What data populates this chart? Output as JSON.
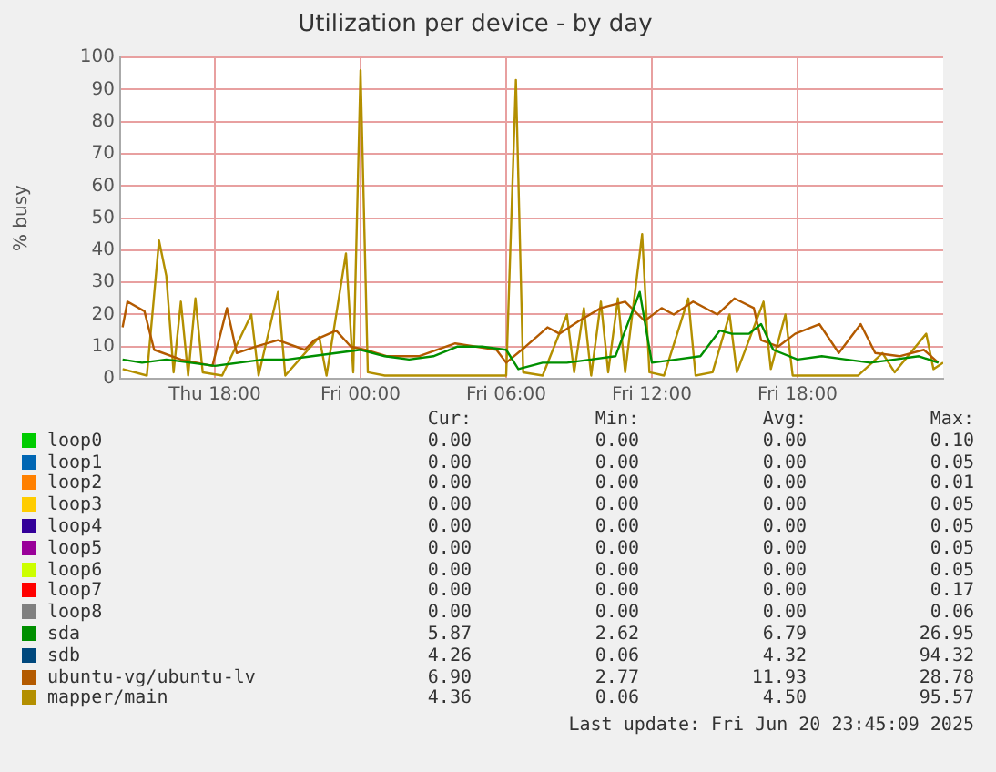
{
  "chart_data": {
    "type": "line",
    "title": "Utilization per device - by day",
    "ylabel": "% busy",
    "xlim": [
      "2025-06-19T14:06",
      "2025-06-21T00:00"
    ],
    "xticks": [
      {
        "value": "2025-06-19T18:00",
        "label": "Thu 18:00"
      },
      {
        "value": "2025-06-20T00:00",
        "label": "Fri 00:00"
      },
      {
        "value": "2025-06-20T06:00",
        "label": "Fri 06:00"
      },
      {
        "value": "2025-06-20T12:00",
        "label": "Fri 12:00"
      },
      {
        "value": "2025-06-20T18:00",
        "label": "Fri 18:00"
      }
    ],
    "ylim": [
      0,
      100
    ],
    "yticks": [
      0,
      10,
      20,
      30,
      40,
      50,
      60,
      70,
      80,
      90,
      100
    ],
    "grid": true,
    "legend": "bottom",
    "marker": "none",
    "series": [
      {
        "name": "loop0",
        "color": "#00cc00"
      },
      {
        "name": "loop1",
        "color": "#0066b3"
      },
      {
        "name": "loop2",
        "color": "#ff8000"
      },
      {
        "name": "loop3",
        "color": "#ffcc00"
      },
      {
        "name": "loop4",
        "color": "#330099"
      },
      {
        "name": "loop5",
        "color": "#990099"
      },
      {
        "name": "loop6",
        "color": "#ccff00"
      },
      {
        "name": "loop7",
        "color": "#ff0000"
      },
      {
        "name": "loop8",
        "color": "#808080"
      },
      {
        "name": "sda",
        "color": "#008f00",
        "x": [
          "2025-06-19T14:12",
          "2025-06-19T15:00",
          "2025-06-19T16:00",
          "2025-06-19T17:00",
          "2025-06-19T18:00",
          "2025-06-19T19:00",
          "2025-06-19T20:00",
          "2025-06-19T21:00",
          "2025-06-19T22:00",
          "2025-06-19T23:00",
          "2025-06-20T00:00",
          "2025-06-20T01:00",
          "2025-06-20T02:00",
          "2025-06-20T03:00",
          "2025-06-20T04:00",
          "2025-06-20T05:00",
          "2025-06-20T06:00",
          "2025-06-20T06:30",
          "2025-06-20T07:30",
          "2025-06-20T08:30",
          "2025-06-20T09:30",
          "2025-06-20T10:30",
          "2025-06-20T11:30",
          "2025-06-20T12:00",
          "2025-06-20T13:00",
          "2025-06-20T14:00",
          "2025-06-20T14:48",
          "2025-06-20T15:18",
          "2025-06-20T16:00",
          "2025-06-20T16:30",
          "2025-06-20T17:00",
          "2025-06-20T18:00",
          "2025-06-20T19:00",
          "2025-06-20T20:00",
          "2025-06-20T21:00",
          "2025-06-20T22:00",
          "2025-06-20T23:00",
          "2025-06-20T23:48"
        ],
        "values": [
          6,
          5,
          6,
          5,
          4,
          5,
          6,
          6,
          7,
          8,
          9,
          7,
          6,
          7,
          10,
          10,
          9,
          3,
          5,
          5,
          6,
          7,
          27,
          5,
          6,
          7,
          15,
          14,
          14,
          17,
          9,
          6,
          7,
          6,
          5,
          6,
          7,
          5
        ]
      },
      {
        "name": "sdb",
        "color": "#00487d"
      },
      {
        "name": "ubuntu-vg/ubuntu-lv",
        "color": "#b35a00",
        "x": [
          "2025-06-19T14:12",
          "2025-06-19T14:24",
          "2025-06-19T15:06",
          "2025-06-19T15:30",
          "2025-06-19T16:36",
          "2025-06-19T17:54",
          "2025-06-19T18:30",
          "2025-06-19T18:54",
          "2025-06-19T19:42",
          "2025-06-19T20:36",
          "2025-06-19T21:42",
          "2025-06-19T22:06",
          "2025-06-19T23:00",
          "2025-06-19T23:36",
          "2025-06-20T00:12",
          "2025-06-20T01:06",
          "2025-06-20T02:24",
          "2025-06-20T03:54",
          "2025-06-20T05:36",
          "2025-06-20T06:00",
          "2025-06-20T06:48",
          "2025-06-20T07:42",
          "2025-06-20T08:12",
          "2025-06-20T09:00",
          "2025-06-20T09:54",
          "2025-06-20T10:54",
          "2025-06-20T11:42",
          "2025-06-20T12:24",
          "2025-06-20T12:54",
          "2025-06-20T13:42",
          "2025-06-20T14:42",
          "2025-06-20T15:24",
          "2025-06-20T16:12",
          "2025-06-20T16:30",
          "2025-06-20T17:12",
          "2025-06-20T17:54",
          "2025-06-20T18:54",
          "2025-06-20T19:42",
          "2025-06-20T20:36",
          "2025-06-20T21:12",
          "2025-06-20T22:12",
          "2025-06-20T23:12",
          "2025-06-20T23:48"
        ],
        "values": [
          16,
          24,
          21,
          9,
          6,
          4,
          22,
          8,
          10,
          12,
          9,
          12,
          15,
          10,
          9,
          7,
          7,
          11,
          9,
          5,
          10,
          16,
          14,
          18,
          22,
          24,
          18,
          22,
          20,
          24,
          20,
          25,
          22,
          12,
          10,
          14,
          17,
          8,
          17,
          8,
          7,
          9,
          5
        ]
      },
      {
        "name": "mapper/main",
        "color": "#b38f00",
        "x": [
          "2025-06-19T14:12",
          "2025-06-19T15:12",
          "2025-06-19T15:42",
          "2025-06-19T16:00",
          "2025-06-19T16:18",
          "2025-06-19T16:36",
          "2025-06-19T16:54",
          "2025-06-19T17:12",
          "2025-06-19T17:30",
          "2025-06-19T18:18",
          "2025-06-19T19:30",
          "2025-06-19T19:48",
          "2025-06-19T20:36",
          "2025-06-19T20:54",
          "2025-06-19T22:18",
          "2025-06-19T22:36",
          "2025-06-19T23:24",
          "2025-06-19T23:42",
          "2025-06-20T00:00",
          "2025-06-20T00:18",
          "2025-06-20T01:00",
          "2025-06-20T04:00",
          "2025-06-20T06:00",
          "2025-06-20T06:24",
          "2025-06-20T06:42",
          "2025-06-20T07:30",
          "2025-06-20T08:30",
          "2025-06-20T08:48",
          "2025-06-20T09:12",
          "2025-06-20T09:30",
          "2025-06-20T09:54",
          "2025-06-20T10:12",
          "2025-06-20T10:36",
          "2025-06-20T10:54",
          "2025-06-20T11:36",
          "2025-06-20T11:54",
          "2025-06-20T12:30",
          "2025-06-20T13:30",
          "2025-06-20T13:48",
          "2025-06-20T14:30",
          "2025-06-20T15:12",
          "2025-06-20T15:30",
          "2025-06-20T16:36",
          "2025-06-20T16:54",
          "2025-06-20T17:30",
          "2025-06-20T17:48",
          "2025-06-20T19:00",
          "2025-06-20T20:30",
          "2025-06-20T21:30",
          "2025-06-20T22:00",
          "2025-06-20T23:18",
          "2025-06-20T23:36",
          "2025-06-21T00:00"
        ],
        "values": [
          3,
          1,
          43,
          32,
          2,
          24,
          1,
          25,
          2,
          1,
          20,
          1,
          27,
          1,
          13,
          1,
          39,
          2,
          96,
          2,
          1,
          1,
          1,
          93,
          2,
          1,
          20,
          2,
          22,
          1,
          24,
          2,
          25,
          2,
          45,
          2,
          1,
          25,
          1,
          2,
          20,
          2,
          24,
          3,
          20,
          1,
          1,
          1,
          8,
          2,
          14,
          3,
          5
        ]
      }
    ],
    "annotations": [
      "Cur:",
      "Min:",
      "Avg:",
      "Max:",
      "0.00",
      "0.00",
      "0.00",
      "0.10",
      "0.00",
      "0.00",
      "0.00",
      "0.05",
      "0.00",
      "0.00",
      "0.00",
      "0.01",
      "0.00",
      "0.00",
      "0.00",
      "0.05",
      "0.00",
      "0.00",
      "0.00",
      "0.05",
      "0.00",
      "0.00",
      "0.00",
      "0.05",
      "0.00",
      "0.00",
      "0.00",
      "0.05",
      "0.00",
      "0.00",
      "0.00",
      "0.17",
      "0.00",
      "0.00",
      "0.00",
      "0.06",
      "5.87",
      "2.62",
      "6.79",
      "26.95",
      "4.26",
      "0.06",
      "4.32",
      "94.32",
      "6.90",
      "2.77",
      "11.93",
      "28.78",
      "4.36",
      "0.06",
      "4.50",
      "95.57",
      "Last update: Fri Jun 20 23:45:09 2025"
    ]
  }
}
